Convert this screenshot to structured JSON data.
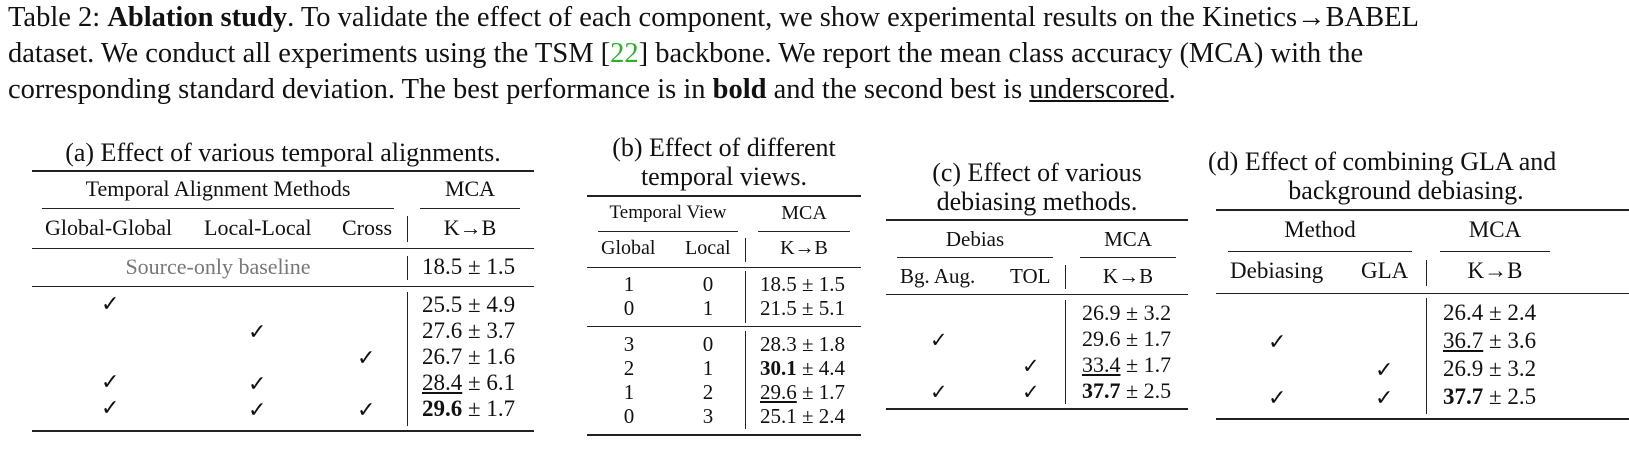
{
  "caption": {
    "label": "Table 2:",
    "bold_title": "Ablation study",
    "line1_rest": ". To validate the effect of each component, we show experimental results on the Kinetics→BABEL",
    "line2_a": "dataset. We conduct all experiments using the TSM [",
    "line2_cite": "22",
    "line2_b": "] backbone. We report the mean class accuracy (MCA) with the",
    "line3_a": "corresponding standard deviation. The best performance is in ",
    "line3_bold": "bold",
    "line3_b": " and the second best is ",
    "line3_ul": "underscored",
    "line3_c": "."
  },
  "table_a": {
    "title": "(a) Effect of various temporal alignments.",
    "group_header": "Temporal Alignment Methods",
    "mca_header": "MCA",
    "col_global": "Global-Global",
    "col_local": "Local-Local",
    "col_cross": "Cross",
    "col_kb": "K→B",
    "baseline_label": "Source-only baseline",
    "baseline_value": "18.5 ± 1.5",
    "rows": [
      {
        "gg": true,
        "ll": false,
        "cr": false,
        "mean": "25.5",
        "std": "4.9",
        "style": ""
      },
      {
        "gg": false,
        "ll": true,
        "cr": false,
        "mean": "27.6",
        "std": "3.7",
        "style": ""
      },
      {
        "gg": false,
        "ll": false,
        "cr": true,
        "mean": "26.7",
        "std": "1.6",
        "style": ""
      },
      {
        "gg": true,
        "ll": true,
        "cr": false,
        "mean": "28.4",
        "std": "6.1",
        "style": "underline"
      },
      {
        "gg": true,
        "ll": true,
        "cr": true,
        "mean": "29.6",
        "std": "1.7",
        "style": "bold"
      }
    ]
  },
  "table_b": {
    "title_line1": "(b) Effect of different",
    "title_line2": "temporal views.",
    "group_header": "Temporal View",
    "mca_header": "MCA",
    "col_global": "Global",
    "col_local": "Local",
    "col_kb": "K→B",
    "rows": [
      {
        "global": "1",
        "local": "0",
        "mean": "18.5",
        "std": "1.5",
        "style": ""
      },
      {
        "global": "0",
        "local": "1",
        "mean": "21.5",
        "std": "5.1",
        "style": ""
      },
      {
        "global": "3",
        "local": "0",
        "mean": "28.3",
        "std": "1.8",
        "style": ""
      },
      {
        "global": "2",
        "local": "1",
        "mean": "30.1",
        "std": "4.4",
        "style": "bold"
      },
      {
        "global": "1",
        "local": "2",
        "mean": "29.6",
        "std": "1.7",
        "style": "underline"
      },
      {
        "global": "0",
        "local": "3",
        "mean": "25.1",
        "std": "2.4",
        "style": ""
      }
    ]
  },
  "table_c": {
    "title_line1": "(c) Effect of various",
    "title_line2": "debiasing methods.",
    "group_header": "Debias",
    "mca_header": "MCA",
    "col_bg": "Bg. Aug.",
    "col_tol": "TOL",
    "col_kb": "K→B",
    "rows": [
      {
        "bg": false,
        "tol": false,
        "mean": "26.9",
        "std": "3.2",
        "style": ""
      },
      {
        "bg": true,
        "tol": false,
        "mean": "29.6",
        "std": "1.7",
        "style": ""
      },
      {
        "bg": false,
        "tol": true,
        "mean": "33.4",
        "std": "1.7",
        "style": "underline"
      },
      {
        "bg": true,
        "tol": true,
        "mean": "37.7",
        "std": "2.5",
        "style": "bold"
      }
    ]
  },
  "table_d": {
    "title_line1": "(d) Effect of combining GLA and",
    "title_line2": "background debiasing.",
    "group_header": "Method",
    "mca_header": "MCA",
    "col_debias": "Debiasing",
    "col_gla": "GLA",
    "col_kb": "K→B",
    "rows": [
      {
        "deb": false,
        "gla": false,
        "mean": "26.4",
        "std": "2.4",
        "style": ""
      },
      {
        "deb": true,
        "gla": false,
        "mean": "36.7",
        "std": "3.6",
        "style": "underline"
      },
      {
        "deb": false,
        "gla": true,
        "mean": "26.9",
        "std": "3.2",
        "style": ""
      },
      {
        "deb": true,
        "gla": true,
        "mean": "37.7",
        "std": "2.5",
        "style": "bold"
      }
    ]
  },
  "symbols": {
    "check": "✓",
    "pm": "±"
  }
}
